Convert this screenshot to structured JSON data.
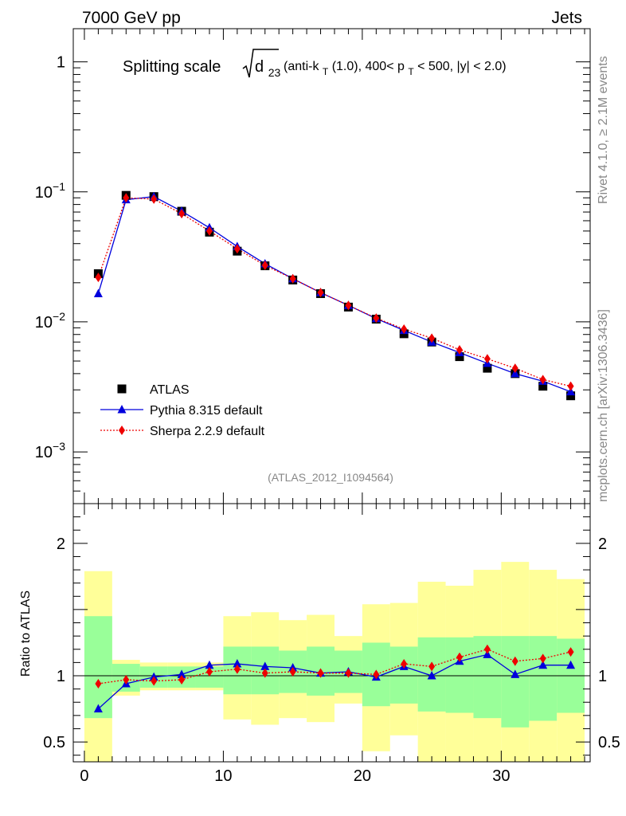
{
  "header": {
    "left": "7000 GeV pp",
    "right": "Jets"
  },
  "side_labels": {
    "rivet": "Rivet 4.1.0, ≥ 2.1M events",
    "mcplots": "mcplots.cern.ch [arXiv:1306.3436]"
  },
  "chart_data": {
    "type": "line",
    "title": {
      "lead": "Splitting scale",
      "symbol": "d",
      "symbol_sub": "23",
      "p1": "(anti-k",
      "p1_sub": "T",
      "p2": "(1.0), 400< p",
      "p2_sub": "T",
      "p3": " < 500, |y| < 2.0)"
    },
    "watermark": "(ATLAS_2012_I1094564)",
    "ratio_ylabel": "Ratio to ATLAS",
    "xlim": [
      -0.8,
      36.4
    ],
    "ylim_main": [
      0.0004,
      1.8
    ],
    "ylim_ratio": [
      0.35,
      2.3
    ],
    "main_yticks": [
      {
        "value": 1,
        "base": "1",
        "exp": ""
      },
      {
        "value": 0.1,
        "base": "10",
        "exp": "−1"
      },
      {
        "value": 0.01,
        "base": "10",
        "exp": "−2"
      },
      {
        "value": 0.001,
        "base": "10",
        "exp": "−3"
      }
    ],
    "ratio_yticks": [
      {
        "value": 2,
        "label": "2"
      },
      {
        "value": 1,
        "label": "1"
      },
      {
        "value": 0.5,
        "label": "0.5"
      }
    ],
    "xticks": [
      {
        "value": 0,
        "label": "0"
      },
      {
        "value": 10,
        "label": "10"
      },
      {
        "value": 20,
        "label": "20"
      },
      {
        "value": 30,
        "label": "30"
      }
    ],
    "x": [
      1,
      3,
      5,
      7,
      9,
      11,
      13,
      15,
      17,
      19,
      21,
      23,
      25,
      27,
      29,
      31,
      33,
      35
    ],
    "bin_edges": [
      0,
      2,
      4,
      6,
      8,
      10,
      12,
      14,
      16,
      18,
      20,
      22,
      24,
      26,
      28,
      30,
      32,
      34,
      36
    ],
    "series": [
      {
        "name": "ATLAS",
        "color": "#000000",
        "marker": "square",
        "values": [
          0.0235,
          0.094,
          0.092,
          0.071,
          0.049,
          0.035,
          0.027,
          0.021,
          0.0165,
          0.013,
          0.0105,
          0.0081,
          0.007,
          0.0054,
          0.0044,
          0.004,
          0.0032,
          0.0027
        ]
      },
      {
        "name": "Pythia 8.315 default",
        "color": "#0000dd",
        "marker": "triangle",
        "line": "solid",
        "values": [
          0.0165,
          0.087,
          0.092,
          0.071,
          0.053,
          0.038,
          0.028,
          0.0215,
          0.0168,
          0.0134,
          0.0106,
          0.0086,
          0.007,
          0.0058,
          0.0048,
          0.004,
          0.0035,
          0.0029
        ]
      },
      {
        "name": "Sherpa 2.2.9 default",
        "color": "#ee0000",
        "marker": "diamond",
        "line": "dotted",
        "values": [
          0.022,
          0.09,
          0.088,
          0.068,
          0.05,
          0.0365,
          0.0272,
          0.0215,
          0.0168,
          0.0134,
          0.0107,
          0.0088,
          0.0075,
          0.0061,
          0.0052,
          0.0044,
          0.0036,
          0.0032
        ]
      }
    ],
    "ratios": {
      "Pythia 8.315 default": [
        0.75,
        0.94,
        0.99,
        1.01,
        1.08,
        1.09,
        1.07,
        1.06,
        1.02,
        1.03,
        0.99,
        1.07,
        1.0,
        1.11,
        1.16,
        1.01,
        1.08,
        1.08
      ],
      "Sherpa 2.2.9 default": [
        0.94,
        0.97,
        0.96,
        0.97,
        1.03,
        1.05,
        1.02,
        1.03,
        1.02,
        1.02,
        1.01,
        1.09,
        1.07,
        1.14,
        1.2,
        1.11,
        1.13,
        1.18
      ]
    },
    "uncertainty_band_green": [
      [
        0.68,
        1.45
      ],
      [
        0.88,
        1.09
      ],
      [
        0.91,
        1.07
      ],
      [
        0.91,
        1.07
      ],
      [
        0.91,
        1.07
      ],
      [
        0.86,
        1.22
      ],
      [
        0.86,
        1.22
      ],
      [
        0.87,
        1.19
      ],
      [
        0.85,
        1.22
      ],
      [
        0.87,
        1.19
      ],
      [
        0.77,
        1.25
      ],
      [
        0.79,
        1.22
      ],
      [
        0.73,
        1.29
      ],
      [
        0.72,
        1.29
      ],
      [
        0.68,
        1.3
      ],
      [
        0.61,
        1.3
      ],
      [
        0.66,
        1.3
      ],
      [
        0.72,
        1.28
      ]
    ],
    "uncertainty_band_yellow": [
      [
        0.35,
        1.79
      ],
      [
        0.85,
        1.12
      ],
      [
        0.89,
        1.1
      ],
      [
        0.89,
        1.1
      ],
      [
        0.89,
        1.1
      ],
      [
        0.67,
        1.45
      ],
      [
        0.63,
        1.48
      ],
      [
        0.68,
        1.42
      ],
      [
        0.65,
        1.46
      ],
      [
        0.79,
        1.3
      ],
      [
        0.43,
        1.54
      ],
      [
        0.55,
        1.55
      ],
      [
        0.35,
        1.71
      ],
      [
        0.35,
        1.68
      ],
      [
        0.35,
        1.8
      ],
      [
        0.35,
        1.86
      ],
      [
        0.35,
        1.8
      ],
      [
        0.35,
        1.73
      ]
    ]
  }
}
